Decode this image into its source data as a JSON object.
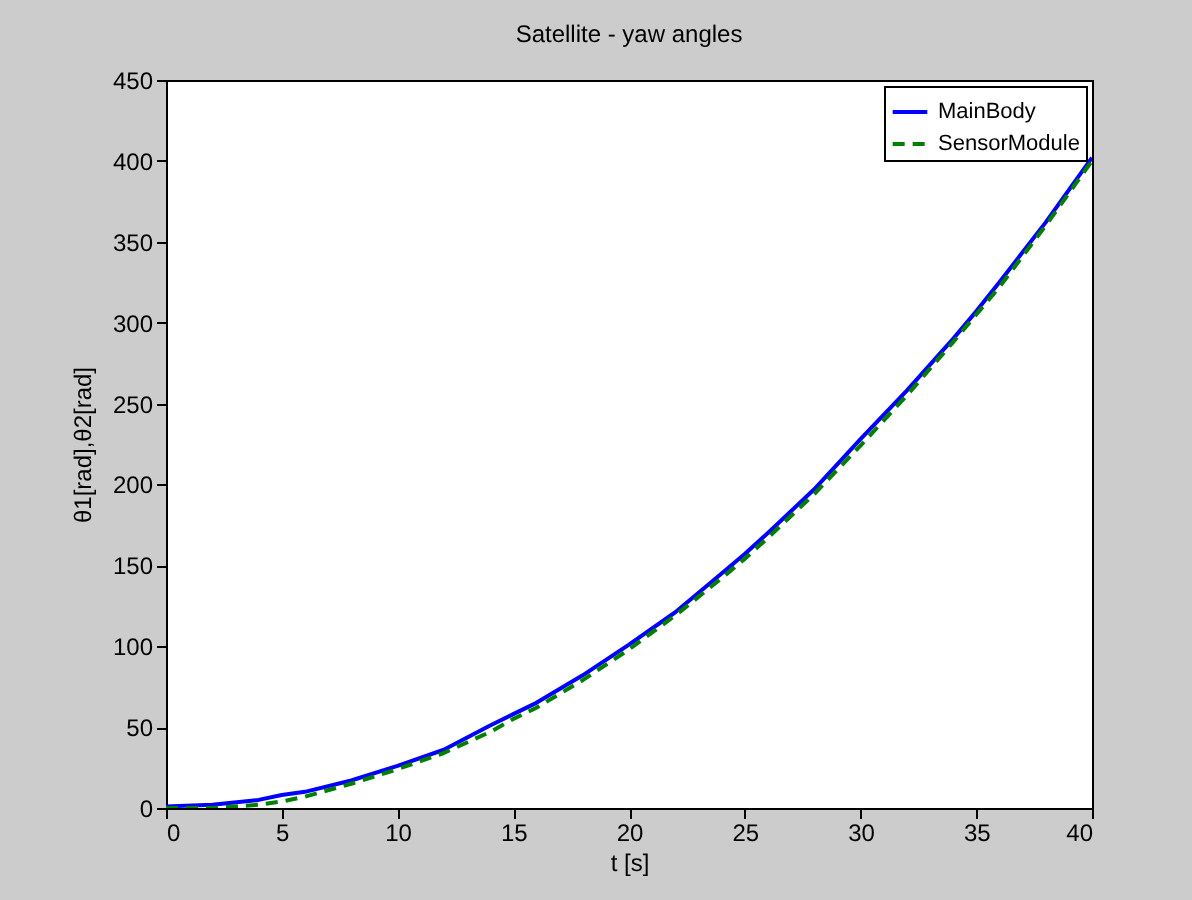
{
  "chart_data": {
    "type": "line",
    "title": "Satellite - yaw angles",
    "xlabel": "t [s]",
    "ylabel": "θ1[rad],θ2[rad]",
    "x": [
      0,
      2,
      4,
      5,
      6,
      8,
      10,
      12,
      14,
      15,
      16,
      18,
      20,
      22,
      24,
      25,
      26,
      28,
      30,
      32,
      34,
      35,
      36,
      38,
      40
    ],
    "series": [
      {
        "name": "MainBody",
        "color": "#0000ff",
        "line_style": "solid",
        "values": [
          1,
          2,
          5,
          8,
          10,
          17,
          26,
          36,
          51,
          58,
          65,
          82,
          101,
          121,
          145,
          157,
          170,
          197,
          228,
          258,
          290,
          307,
          325,
          362,
          402
        ]
      },
      {
        "name": "SensorModule",
        "color": "#008000",
        "line_style": "dashed",
        "values": [
          0,
          0,
          2,
          4,
          7,
          15,
          24,
          34,
          47,
          55,
          62,
          79,
          98,
          119,
          142,
          154,
          167,
          194,
          224,
          255,
          288,
          305,
          322,
          360,
          400
        ]
      }
    ],
    "xlim": [
      0,
      40
    ],
    "xticks": [
      0,
      5,
      10,
      15,
      20,
      25,
      30,
      35,
      40
    ],
    "ylim": [
      0,
      450
    ],
    "yticks": [
      0,
      50,
      100,
      150,
      200,
      250,
      300,
      350,
      400,
      450
    ],
    "grid": false,
    "legend": "top right",
    "marker": "none"
  }
}
